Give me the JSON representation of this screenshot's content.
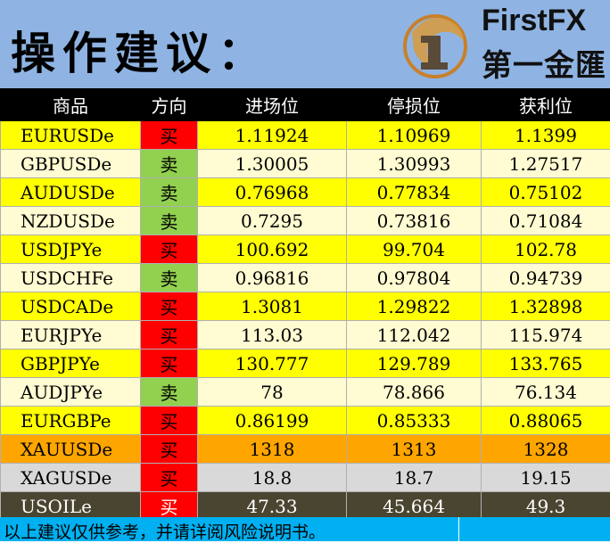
{
  "header": {
    "title": "操作建议：",
    "brand_en": "FirstFX",
    "brand_cn": "第一金匯"
  },
  "table": {
    "columns": [
      "商品",
      "方向",
      "进场位",
      "停损位",
      "获利位"
    ],
    "rows": [
      {
        "symbol": "EURUSDe",
        "direction": "买",
        "entry": "1.11924",
        "stop": "1.10969",
        "profit": "1.1399"
      },
      {
        "symbol": "GBPUSDe",
        "direction": "卖",
        "entry": "1.30005",
        "stop": "1.30993",
        "profit": "1.27517"
      },
      {
        "symbol": "AUDUSDe",
        "direction": "卖",
        "entry": "0.76968",
        "stop": "0.77834",
        "profit": "0.75102"
      },
      {
        "symbol": "NZDUSDe",
        "direction": "卖",
        "entry": "0.7295",
        "stop": "0.73816",
        "profit": "0.71084"
      },
      {
        "symbol": "USDJPYe",
        "direction": "买",
        "entry": "100.692",
        "stop": "99.704",
        "profit": "102.78"
      },
      {
        "symbol": "USDCHFe",
        "direction": "卖",
        "entry": "0.96816",
        "stop": "0.97804",
        "profit": "0.94739"
      },
      {
        "symbol": "USDCADe",
        "direction": "买",
        "entry": "1.3081",
        "stop": "1.29822",
        "profit": "1.32898"
      },
      {
        "symbol": "EURJPYe",
        "direction": "买",
        "entry": "113.03",
        "stop": "112.042",
        "profit": "115.974"
      },
      {
        "symbol": "GBPJPYe",
        "direction": "买",
        "entry": "130.777",
        "stop": "129.789",
        "profit": "133.765"
      },
      {
        "symbol": "AUDJPYe",
        "direction": "卖",
        "entry": "78",
        "stop": "78.866",
        "profit": "76.134"
      },
      {
        "symbol": "EURGBPe",
        "direction": "买",
        "entry": "0.86199",
        "stop": "0.85333",
        "profit": "0.88065"
      },
      {
        "symbol": "XAUUSDe",
        "direction": "买",
        "entry": "1318",
        "stop": "1313",
        "profit": "1328"
      },
      {
        "symbol": "XAGUSDe",
        "direction": "买",
        "entry": "18.8",
        "stop": "18.7",
        "profit": "19.15"
      },
      {
        "symbol": "USOILe",
        "direction": "买",
        "entry": "47.33",
        "stop": "45.664",
        "profit": "49.3"
      }
    ]
  },
  "footer": {
    "disclaimer": "以上建议仅供参考，并请详阅风险说明书。"
  },
  "colors": {
    "header_bg": "#8fb4e3",
    "buy": "#ff0000",
    "sell": "#92d050",
    "footer_bg": "#00b0f0"
  }
}
